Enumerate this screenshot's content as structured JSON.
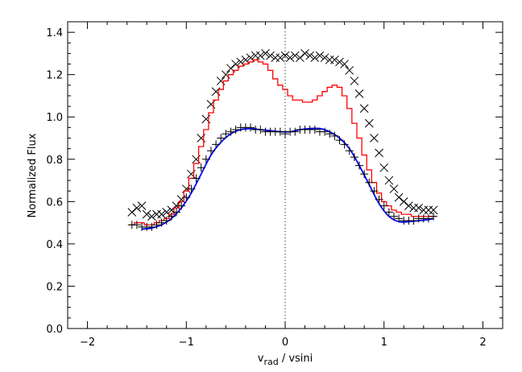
{
  "chart_data": {
    "type": "line",
    "title": "",
    "xlabel": {
      "main": "v",
      "subscript": "rad",
      "suffix": " / vsini"
    },
    "ylabel": "Normalized Flux",
    "xlim": [
      -2.2,
      2.2
    ],
    "ylim": [
      0.0,
      1.45
    ],
    "x_ticks": [
      {
        "value": -2,
        "label": "−2"
      },
      {
        "value": -1,
        "label": "−1"
      },
      {
        "value": 0,
        "label": "0"
      },
      {
        "value": 1,
        "label": "1"
      },
      {
        "value": 2,
        "label": "2"
      }
    ],
    "y_ticks": [
      {
        "value": 0.0,
        "label": "0.0"
      },
      {
        "value": 0.2,
        "label": "0.2"
      },
      {
        "value": 0.4,
        "label": "0.4"
      },
      {
        "value": 0.6,
        "label": "0.6"
      },
      {
        "value": 0.8,
        "label": "0.8"
      },
      {
        "value": 1.0,
        "label": "1.0"
      },
      {
        "value": 1.2,
        "label": "1.2"
      },
      {
        "value": 1.4,
        "label": "1.4"
      }
    ],
    "reference_line": {
      "x": 0,
      "style": "dotted"
    },
    "colors": {
      "x_marks": "#000000",
      "plus_marks": "#000000",
      "red_line": "#ff0000",
      "blue_line": "#0000ff"
    },
    "series": [
      {
        "marker": "x",
        "points": [
          [
            -1.55,
            0.55
          ],
          [
            -1.5,
            0.57
          ],
          [
            -1.45,
            0.58
          ],
          [
            -1.4,
            0.54
          ],
          [
            -1.35,
            0.53
          ],
          [
            -1.3,
            0.54
          ],
          [
            -1.25,
            0.54
          ],
          [
            -1.2,
            0.55
          ],
          [
            -1.15,
            0.56
          ],
          [
            -1.1,
            0.58
          ],
          [
            -1.05,
            0.61
          ],
          [
            -1.0,
            0.66
          ],
          [
            -0.95,
            0.73
          ],
          [
            -0.9,
            0.8
          ],
          [
            -0.85,
            0.9
          ],
          [
            -0.8,
            0.99
          ],
          [
            -0.75,
            1.06
          ],
          [
            -0.7,
            1.12
          ],
          [
            -0.65,
            1.17
          ],
          [
            -0.6,
            1.2
          ],
          [
            -0.55,
            1.23
          ],
          [
            -0.5,
            1.25
          ],
          [
            -0.45,
            1.26
          ],
          [
            -0.4,
            1.27
          ],
          [
            -0.35,
            1.28
          ],
          [
            -0.3,
            1.29
          ],
          [
            -0.25,
            1.29
          ],
          [
            -0.2,
            1.3
          ],
          [
            -0.15,
            1.29
          ],
          [
            -0.1,
            1.28
          ],
          [
            -0.05,
            1.28
          ],
          [
            0.0,
            1.29
          ],
          [
            0.05,
            1.28
          ],
          [
            0.1,
            1.29
          ],
          [
            0.15,
            1.28
          ],
          [
            0.2,
            1.3
          ],
          [
            0.25,
            1.29
          ],
          [
            0.3,
            1.28
          ],
          [
            0.35,
            1.29
          ],
          [
            0.4,
            1.28
          ],
          [
            0.45,
            1.27
          ],
          [
            0.5,
            1.27
          ],
          [
            0.55,
            1.26
          ],
          [
            0.6,
            1.25
          ],
          [
            0.65,
            1.22
          ],
          [
            0.7,
            1.17
          ],
          [
            0.75,
            1.11
          ],
          [
            0.8,
            1.04
          ],
          [
            0.85,
            0.97
          ],
          [
            0.9,
            0.9
          ],
          [
            0.95,
            0.83
          ],
          [
            1.0,
            0.76
          ],
          [
            1.05,
            0.7
          ],
          [
            1.1,
            0.66
          ],
          [
            1.15,
            0.62
          ],
          [
            1.2,
            0.6
          ],
          [
            1.25,
            0.58
          ],
          [
            1.3,
            0.57
          ],
          [
            1.35,
            0.57
          ],
          [
            1.4,
            0.56
          ],
          [
            1.45,
            0.56
          ],
          [
            1.5,
            0.56
          ]
        ]
      },
      {
        "marker": "+",
        "points": [
          [
            -1.55,
            0.49
          ],
          [
            -1.5,
            0.49
          ],
          [
            -1.45,
            0.48
          ],
          [
            -1.4,
            0.48
          ],
          [
            -1.35,
            0.48
          ],
          [
            -1.3,
            0.49
          ],
          [
            -1.25,
            0.5
          ],
          [
            -1.2,
            0.51
          ],
          [
            -1.15,
            0.53
          ],
          [
            -1.1,
            0.55
          ],
          [
            -1.05,
            0.58
          ],
          [
            -1.0,
            0.62
          ],
          [
            -0.95,
            0.66
          ],
          [
            -0.9,
            0.71
          ],
          [
            -0.85,
            0.76
          ],
          [
            -0.8,
            0.8
          ],
          [
            -0.75,
            0.84
          ],
          [
            -0.7,
            0.87
          ],
          [
            -0.65,
            0.9
          ],
          [
            -0.6,
            0.92
          ],
          [
            -0.55,
            0.93
          ],
          [
            -0.5,
            0.94
          ],
          [
            -0.45,
            0.95
          ],
          [
            -0.4,
            0.95
          ],
          [
            -0.35,
            0.95
          ],
          [
            -0.3,
            0.94
          ],
          [
            -0.25,
            0.94
          ],
          [
            -0.2,
            0.93
          ],
          [
            -0.15,
            0.93
          ],
          [
            -0.1,
            0.93
          ],
          [
            -0.05,
            0.93
          ],
          [
            0.0,
            0.92
          ],
          [
            0.05,
            0.93
          ],
          [
            0.1,
            0.93
          ],
          [
            0.15,
            0.94
          ],
          [
            0.2,
            0.94
          ],
          [
            0.25,
            0.94
          ],
          [
            0.3,
            0.94
          ],
          [
            0.35,
            0.93
          ],
          [
            0.4,
            0.93
          ],
          [
            0.45,
            0.92
          ],
          [
            0.5,
            0.91
          ],
          [
            0.55,
            0.89
          ],
          [
            0.6,
            0.87
          ],
          [
            0.65,
            0.84
          ],
          [
            0.7,
            0.81
          ],
          [
            0.75,
            0.77
          ],
          [
            0.8,
            0.73
          ],
          [
            0.85,
            0.69
          ],
          [
            0.9,
            0.65
          ],
          [
            0.95,
            0.61
          ],
          [
            1.0,
            0.58
          ],
          [
            1.05,
            0.55
          ],
          [
            1.1,
            0.53
          ],
          [
            1.15,
            0.52
          ],
          [
            1.2,
            0.51
          ],
          [
            1.25,
            0.51
          ],
          [
            1.3,
            0.51
          ],
          [
            1.35,
            0.52
          ],
          [
            1.4,
            0.52
          ],
          [
            1.45,
            0.52
          ],
          [
            1.5,
            0.53
          ]
        ]
      },
      {
        "style": "step",
        "points": [
          [
            -1.55,
            0.49
          ],
          [
            -1.5,
            0.5
          ],
          [
            -1.45,
            0.5
          ],
          [
            -1.4,
            0.49
          ],
          [
            -1.35,
            0.49
          ],
          [
            -1.3,
            0.5
          ],
          [
            -1.25,
            0.51
          ],
          [
            -1.2,
            0.52
          ],
          [
            -1.15,
            0.54
          ],
          [
            -1.1,
            0.57
          ],
          [
            -1.05,
            0.6
          ],
          [
            -1.0,
            0.65
          ],
          [
            -0.95,
            0.71
          ],
          [
            -0.9,
            0.78
          ],
          [
            -0.85,
            0.86
          ],
          [
            -0.8,
            0.94
          ],
          [
            -0.75,
            1.02
          ],
          [
            -0.7,
            1.08
          ],
          [
            -0.65,
            1.13
          ],
          [
            -0.6,
            1.17
          ],
          [
            -0.55,
            1.2
          ],
          [
            -0.5,
            1.22
          ],
          [
            -0.45,
            1.24
          ],
          [
            -0.4,
            1.25
          ],
          [
            -0.35,
            1.26
          ],
          [
            -0.3,
            1.27
          ],
          [
            -0.25,
            1.26
          ],
          [
            -0.2,
            1.25
          ],
          [
            -0.15,
            1.22
          ],
          [
            -0.1,
            1.18
          ],
          [
            -0.05,
            1.15
          ],
          [
            0.0,
            1.13
          ],
          [
            0.05,
            1.1
          ],
          [
            0.1,
            1.08
          ],
          [
            0.15,
            1.08
          ],
          [
            0.2,
            1.07
          ],
          [
            0.25,
            1.07
          ],
          [
            0.3,
            1.08
          ],
          [
            0.35,
            1.1
          ],
          [
            0.4,
            1.12
          ],
          [
            0.45,
            1.14
          ],
          [
            0.5,
            1.15
          ],
          [
            0.55,
            1.14
          ],
          [
            0.6,
            1.1
          ],
          [
            0.65,
            1.04
          ],
          [
            0.7,
            0.97
          ],
          [
            0.75,
            0.9
          ],
          [
            0.8,
            0.82
          ],
          [
            0.85,
            0.75
          ],
          [
            0.9,
            0.69
          ],
          [
            0.95,
            0.64
          ],
          [
            1.0,
            0.6
          ],
          [
            1.05,
            0.58
          ],
          [
            1.1,
            0.56
          ],
          [
            1.15,
            0.55
          ],
          [
            1.2,
            0.54
          ],
          [
            1.25,
            0.54
          ],
          [
            1.3,
            0.53
          ],
          [
            1.35,
            0.53
          ],
          [
            1.4,
            0.53
          ],
          [
            1.45,
            0.53
          ],
          [
            1.5,
            0.53
          ]
        ]
      },
      {
        "style": "smooth",
        "points": [
          [
            -1.45,
            0.47
          ],
          [
            -1.35,
            0.475
          ],
          [
            -1.25,
            0.49
          ],
          [
            -1.15,
            0.52
          ],
          [
            -1.05,
            0.57
          ],
          [
            -0.95,
            0.64
          ],
          [
            -0.85,
            0.73
          ],
          [
            -0.75,
            0.82
          ],
          [
            -0.65,
            0.88
          ],
          [
            -0.55,
            0.92
          ],
          [
            -0.45,
            0.94
          ],
          [
            -0.35,
            0.945
          ],
          [
            -0.25,
            0.94
          ],
          [
            -0.15,
            0.935
          ],
          [
            -0.05,
            0.93
          ],
          [
            0.05,
            0.93
          ],
          [
            0.15,
            0.94
          ],
          [
            0.25,
            0.945
          ],
          [
            0.35,
            0.945
          ],
          [
            0.45,
            0.93
          ],
          [
            0.55,
            0.9
          ],
          [
            0.65,
            0.85
          ],
          [
            0.75,
            0.77
          ],
          [
            0.85,
            0.68
          ],
          [
            0.95,
            0.59
          ],
          [
            1.05,
            0.53
          ],
          [
            1.15,
            0.505
          ],
          [
            1.25,
            0.505
          ],
          [
            1.35,
            0.51
          ],
          [
            1.45,
            0.515
          ],
          [
            1.5,
            0.52
          ]
        ]
      }
    ]
  }
}
